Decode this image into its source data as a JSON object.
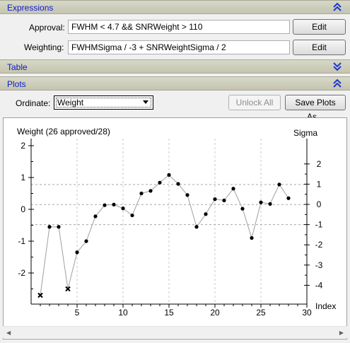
{
  "sections": {
    "expressions": "Expressions",
    "table": "Table",
    "plots": "Plots"
  },
  "approval": {
    "label": "Approval:",
    "value": "FWHM < 4.7 && SNRWeight > 110",
    "edit": "Edit"
  },
  "weighting": {
    "label": "Weighting:",
    "value": "FWHMSigma / -3 + SNRWeightSigma / 2",
    "edit": "Edit"
  },
  "plots": {
    "ordinate_label": "Ordinate:",
    "ordinate_value": "Weight",
    "unlock_all": "Unlock All",
    "save_plots": "Save Plots As..."
  },
  "colors": {
    "section_title": "#0a1ccd",
    "chevron": "#1a3ad0"
  },
  "icons": [
    "chevron-up-icon",
    "chevron-down-icon",
    "chevron-up-icon",
    "dropdown-arrow-icon"
  ],
  "chart_data": {
    "type": "scatter",
    "title": "Weight (26 approved/28)",
    "right_axis_title": "Sigma",
    "xlabel": "Index",
    "xlim": [
      0,
      30
    ],
    "ylim": [
      -3,
      2.1
    ],
    "x_ticks": [
      5,
      10,
      15,
      20,
      25,
      30
    ],
    "y_ticks": [
      -2,
      -1,
      0,
      1,
      2
    ],
    "right_ticks": [
      -4,
      -3,
      -2,
      -1,
      0,
      1,
      2
    ],
    "points": [
      {
        "x": 1,
        "y": -2.7,
        "approved": false
      },
      {
        "x": 2,
        "y": -0.55,
        "approved": true
      },
      {
        "x": 3,
        "y": -0.55,
        "approved": true
      },
      {
        "x": 4,
        "y": -2.5,
        "approved": false
      },
      {
        "x": 5,
        "y": -1.35,
        "approved": true
      },
      {
        "x": 6,
        "y": -1.0,
        "approved": true
      },
      {
        "x": 7,
        "y": -0.22,
        "approved": true
      },
      {
        "x": 8,
        "y": 0.13,
        "approved": true
      },
      {
        "x": 9,
        "y": 0.15,
        "approved": true
      },
      {
        "x": 10,
        "y": 0.03,
        "approved": true
      },
      {
        "x": 11,
        "y": -0.19,
        "approved": true
      },
      {
        "x": 12,
        "y": 0.5,
        "approved": true
      },
      {
        "x": 13,
        "y": 0.58,
        "approved": true
      },
      {
        "x": 14,
        "y": 0.84,
        "approved": true
      },
      {
        "x": 15,
        "y": 1.08,
        "approved": true
      },
      {
        "x": 16,
        "y": 0.8,
        "approved": true
      },
      {
        "x": 17,
        "y": 0.45,
        "approved": true
      },
      {
        "x": 18,
        "y": -0.55,
        "approved": true
      },
      {
        "x": 19,
        "y": -0.15,
        "approved": true
      },
      {
        "x": 20,
        "y": 0.32,
        "approved": true
      },
      {
        "x": 21,
        "y": 0.28,
        "approved": true
      },
      {
        "x": 22,
        "y": 0.65,
        "approved": true
      },
      {
        "x": 23,
        "y": 0.02,
        "approved": true
      },
      {
        "x": 24,
        "y": -0.9,
        "approved": true
      },
      {
        "x": 25,
        "y": 0.22,
        "approved": true
      },
      {
        "x": 26,
        "y": 0.17,
        "approved": true
      },
      {
        "x": 27,
        "y": 0.78,
        "approved": true
      },
      {
        "x": 28,
        "y": 0.35,
        "approved": true
      }
    ],
    "reference_lines": [
      0.78,
      0.15,
      -0.48
    ]
  }
}
